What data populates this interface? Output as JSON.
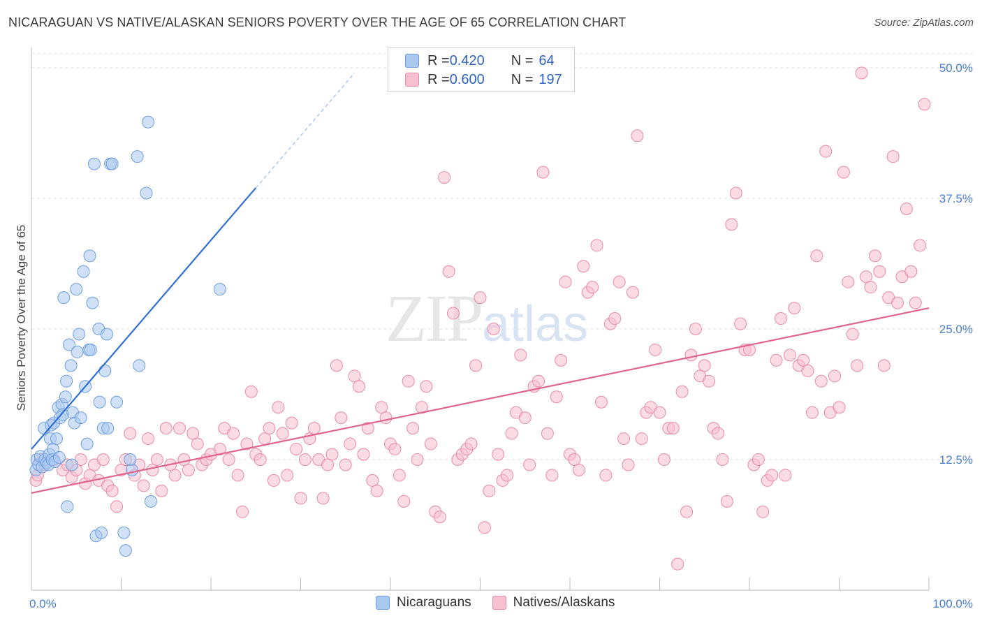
{
  "title": "NICARAGUAN VS NATIVE/ALASKAN SENIORS POVERTY OVER THE AGE OF 65 CORRELATION CHART",
  "source": "Source: ZipAtlas.com",
  "watermark": {
    "zip": "ZIP",
    "atlas": "atlas"
  },
  "legend": {
    "rows": [
      {
        "r_label": "R = ",
        "r_value": "0.420",
        "n_label": "N = ",
        "n_value": "64",
        "color": "#a9c8f0",
        "border": "#6d9fe0"
      },
      {
        "r_label": "R = ",
        "r_value": "0.600",
        "n_label": "N = ",
        "n_value": "197",
        "color": "#f7c0d0",
        "border": "#e88aa6"
      }
    ]
  },
  "bottom_legend": [
    "Nicaraguans",
    "Natives/Alaskans"
  ],
  "chart_data": {
    "type": "scatter",
    "title": "NICARAGUAN VS NATIVE/ALASKAN SENIORS POVERTY OVER THE AGE OF 65 CORRELATION CHART",
    "ylabel": "Seniors Poverty Over the Age of 65",
    "xlabel": "",
    "xlim": [
      0,
      100
    ],
    "ylim": [
      0,
      50
    ],
    "x_tick_labels": [
      "0.0%",
      "100.0%"
    ],
    "y_tick_labels": [
      "12.5%",
      "25.0%",
      "37.5%",
      "50.0%"
    ],
    "y_ticks": [
      12.5,
      25.0,
      37.5,
      50.0
    ],
    "grid": true,
    "legend_position": "top-center",
    "series": [
      {
        "name": "Nicaraguans",
        "color": "#a9c8f0",
        "stroke": "#6d9fe0",
        "line_color": "#2f6fd6",
        "trend": {
          "x0": 0,
          "y0": 13.5,
          "x1": 25,
          "y1": 38.5,
          "dash_to_x": 36,
          "dash_to_y": 49.5
        },
        "points": [
          [
            0.5,
            11.5
          ],
          [
            0.6,
            12.5
          ],
          [
            0.8,
            12.0
          ],
          [
            1.0,
            12.8
          ],
          [
            1.2,
            11.8
          ],
          [
            1.4,
            15.5
          ],
          [
            1.5,
            12.5
          ],
          [
            1.7,
            12.2
          ],
          [
            1.9,
            12.0
          ],
          [
            2.0,
            13.0
          ],
          [
            2.1,
            14.5
          ],
          [
            2.2,
            15.8
          ],
          [
            2.3,
            12.5
          ],
          [
            2.4,
            13.5
          ],
          [
            2.5,
            16.0
          ],
          [
            2.6,
            12.3
          ],
          [
            2.8,
            14.5
          ],
          [
            3.0,
            17.5
          ],
          [
            3.1,
            12.7
          ],
          [
            3.2,
            16.5
          ],
          [
            3.4,
            17.8
          ],
          [
            3.5,
            16.8
          ],
          [
            3.6,
            28.0
          ],
          [
            3.8,
            18.5
          ],
          [
            3.9,
            20.0
          ],
          [
            4.0,
            8.0
          ],
          [
            4.2,
            23.5
          ],
          [
            4.4,
            21.5
          ],
          [
            4.6,
            17.0
          ],
          [
            4.8,
            16.0
          ],
          [
            5.0,
            28.8
          ],
          [
            5.1,
            22.8
          ],
          [
            5.3,
            24.5
          ],
          [
            5.5,
            16.5
          ],
          [
            5.8,
            30.5
          ],
          [
            6.0,
            19.5
          ],
          [
            6.2,
            14.0
          ],
          [
            6.4,
            23.0
          ],
          [
            6.5,
            32.0
          ],
          [
            6.6,
            23.0
          ],
          [
            6.8,
            27.5
          ],
          [
            7.0,
            40.8
          ],
          [
            7.2,
            5.2
          ],
          [
            7.5,
            25.0
          ],
          [
            7.6,
            18.0
          ],
          [
            7.8,
            5.5
          ],
          [
            8.0,
            15.5
          ],
          [
            8.2,
            21.0
          ],
          [
            8.4,
            24.5
          ],
          [
            8.5,
            15.5
          ],
          [
            8.8,
            40.8
          ],
          [
            9.0,
            40.8
          ],
          [
            9.5,
            18.0
          ],
          [
            10.3,
            5.5
          ],
          [
            10.5,
            3.8
          ],
          [
            11.0,
            12.5
          ],
          [
            11.2,
            11.5
          ],
          [
            11.8,
            41.5
          ],
          [
            12.0,
            21.5
          ],
          [
            12.8,
            38.0
          ],
          [
            13.0,
            44.8
          ],
          [
            13.3,
            8.5
          ],
          [
            21.0,
            28.8
          ],
          [
            4.5,
            12.0
          ]
        ]
      },
      {
        "name": "Natives/Alaskans",
        "color": "#f7c0d0",
        "stroke": "#e88aa6",
        "line_color": "#e0648c",
        "trend": {
          "x0": 0,
          "y0": 9.3,
          "x1": 100,
          "y1": 27.0
        },
        "points": [
          [
            0.5,
            10.5
          ],
          [
            0.7,
            11.0
          ],
          [
            1.0,
            12.5
          ],
          [
            1.5,
            12.0
          ],
          [
            2.5,
            12.5
          ],
          [
            3.5,
            11.5
          ],
          [
            4.0,
            12.0
          ],
          [
            4.5,
            10.8
          ],
          [
            5.0,
            11.5
          ],
          [
            5.5,
            12.5
          ],
          [
            6.0,
            10.2
          ],
          [
            6.5,
            11.0
          ],
          [
            7.0,
            12.0
          ],
          [
            7.5,
            10.5
          ],
          [
            8.0,
            12.5
          ],
          [
            8.5,
            10.0
          ],
          [
            9.0,
            9.5
          ],
          [
            9.5,
            8.0
          ],
          [
            10.0,
            11.5
          ],
          [
            10.5,
            12.5
          ],
          [
            11.0,
            15.0
          ],
          [
            11.5,
            11.0
          ],
          [
            12.0,
            12.0
          ],
          [
            12.5,
            10.0
          ],
          [
            13.0,
            14.5
          ],
          [
            13.5,
            11.5
          ],
          [
            14.0,
            12.5
          ],
          [
            14.5,
            9.5
          ],
          [
            15.0,
            15.5
          ],
          [
            15.5,
            12.0
          ],
          [
            16.0,
            11.0
          ],
          [
            16.5,
            15.5
          ],
          [
            17.0,
            12.5
          ],
          [
            17.5,
            11.5
          ],
          [
            18.0,
            15.0
          ],
          [
            18.5,
            14.0
          ],
          [
            19.0,
            12.0
          ],
          [
            19.5,
            12.5
          ],
          [
            20.0,
            13.0
          ],
          [
            21.0,
            13.5
          ],
          [
            21.5,
            15.5
          ],
          [
            22.0,
            12.5
          ],
          [
            22.5,
            15.0
          ],
          [
            23.0,
            11.0
          ],
          [
            23.5,
            7.5
          ],
          [
            24.0,
            14.0
          ],
          [
            24.5,
            19.0
          ],
          [
            25.0,
            13.0
          ],
          [
            25.5,
            12.5
          ],
          [
            26.0,
            14.5
          ],
          [
            26.5,
            15.5
          ],
          [
            27.0,
            10.5
          ],
          [
            27.5,
            17.5
          ],
          [
            28.0,
            15.0
          ],
          [
            28.5,
            11.0
          ],
          [
            29.0,
            16.0
          ],
          [
            29.5,
            13.5
          ],
          [
            30.0,
            8.8
          ],
          [
            30.5,
            12.5
          ],
          [
            31.0,
            14.5
          ],
          [
            31.5,
            15.5
          ],
          [
            32.0,
            12.5
          ],
          [
            32.5,
            8.8
          ],
          [
            33.0,
            12.0
          ],
          [
            33.5,
            13.0
          ],
          [
            34.0,
            21.5
          ],
          [
            34.5,
            16.5
          ],
          [
            35.0,
            12.0
          ],
          [
            35.5,
            14.0
          ],
          [
            36.0,
            20.5
          ],
          [
            36.5,
            19.5
          ],
          [
            37.0,
            13.0
          ],
          [
            37.5,
            15.5
          ],
          [
            38.0,
            10.5
          ],
          [
            38.5,
            9.5
          ],
          [
            39.0,
            17.5
          ],
          [
            39.5,
            16.5
          ],
          [
            40.0,
            14.0
          ],
          [
            40.5,
            13.5
          ],
          [
            41.0,
            11.0
          ],
          [
            41.5,
            8.5
          ],
          [
            42.0,
            20.0
          ],
          [
            42.5,
            15.5
          ],
          [
            43.0,
            12.5
          ],
          [
            43.5,
            17.5
          ],
          [
            44.0,
            19.5
          ],
          [
            44.5,
            14.0
          ],
          [
            45.0,
            7.5
          ],
          [
            45.5,
            7.0
          ],
          [
            46.0,
            39.5
          ],
          [
            46.5,
            30.5
          ],
          [
            47.0,
            26.5
          ],
          [
            47.5,
            12.5
          ],
          [
            48.0,
            13.0
          ],
          [
            48.5,
            13.5
          ],
          [
            49.0,
            14.0
          ],
          [
            49.5,
            21.5
          ],
          [
            50.0,
            28.0
          ],
          [
            50.5,
            6.0
          ],
          [
            51.0,
            9.5
          ],
          [
            51.5,
            25.0
          ],
          [
            52.0,
            13.0
          ],
          [
            52.5,
            10.5
          ],
          [
            53.0,
            11.0
          ],
          [
            53.5,
            15.0
          ],
          [
            54.0,
            17.0
          ],
          [
            54.5,
            22.5
          ],
          [
            55.0,
            16.5
          ],
          [
            55.5,
            12.0
          ],
          [
            56.0,
            19.5
          ],
          [
            56.5,
            20.0
          ],
          [
            57.0,
            40.0
          ],
          [
            57.5,
            15.0
          ],
          [
            58.0,
            11.0
          ],
          [
            58.5,
            18.5
          ],
          [
            59.0,
            22.0
          ],
          [
            59.5,
            29.5
          ],
          [
            60.0,
            13.0
          ],
          [
            60.5,
            12.5
          ],
          [
            61.0,
            11.5
          ],
          [
            61.5,
            31.0
          ],
          [
            62.0,
            28.5
          ],
          [
            62.5,
            29.0
          ],
          [
            63.0,
            33.0
          ],
          [
            63.5,
            18.0
          ],
          [
            64.0,
            11.0
          ],
          [
            64.5,
            25.5
          ],
          [
            65.0,
            26.0
          ],
          [
            65.5,
            29.5
          ],
          [
            66.0,
            14.5
          ],
          [
            66.5,
            12.0
          ],
          [
            67.0,
            28.5
          ],
          [
            67.5,
            43.5
          ],
          [
            68.0,
            14.5
          ],
          [
            68.5,
            17.0
          ],
          [
            69.0,
            17.5
          ],
          [
            69.5,
            23.0
          ],
          [
            70.0,
            17.0
          ],
          [
            70.5,
            12.5
          ],
          [
            71.0,
            15.5
          ],
          [
            71.5,
            15.5
          ],
          [
            72.0,
            2.5
          ],
          [
            72.5,
            19.0
          ],
          [
            73.0,
            7.5
          ],
          [
            73.5,
            22.5
          ],
          [
            74.0,
            25.0
          ],
          [
            74.5,
            20.5
          ],
          [
            75.0,
            21.5
          ],
          [
            75.5,
            20.0
          ],
          [
            76.0,
            15.5
          ],
          [
            76.5,
            15.0
          ],
          [
            77.0,
            12.5
          ],
          [
            77.5,
            8.5
          ],
          [
            78.0,
            35.0
          ],
          [
            78.5,
            38.0
          ],
          [
            79.0,
            25.5
          ],
          [
            79.5,
            23.0
          ],
          [
            80.0,
            23.0
          ],
          [
            80.5,
            12.0
          ],
          [
            81.0,
            12.5
          ],
          [
            81.5,
            7.5
          ],
          [
            82.0,
            10.5
          ],
          [
            82.5,
            11.0
          ],
          [
            83.0,
            22.0
          ],
          [
            83.5,
            26.0
          ],
          [
            84.0,
            11.0
          ],
          [
            84.5,
            22.5
          ],
          [
            85.0,
            27.0
          ],
          [
            85.5,
            21.5
          ],
          [
            86.0,
            22.0
          ],
          [
            86.5,
            21.0
          ],
          [
            87.0,
            17.0
          ],
          [
            87.5,
            32.0
          ],
          [
            88.0,
            20.0
          ],
          [
            88.5,
            42.0
          ],
          [
            89.0,
            17.0
          ],
          [
            89.5,
            20.5
          ],
          [
            90.0,
            17.5
          ],
          [
            90.5,
            40.0
          ],
          [
            91.0,
            29.5
          ],
          [
            91.5,
            24.5
          ],
          [
            92.0,
            21.5
          ],
          [
            92.5,
            49.5
          ],
          [
            93.0,
            30.0
          ],
          [
            93.5,
            29.0
          ],
          [
            94.0,
            32.0
          ],
          [
            94.5,
            30.5
          ],
          [
            95.0,
            21.5
          ],
          [
            95.5,
            28.0
          ],
          [
            96.0,
            41.5
          ],
          [
            96.5,
            27.5
          ],
          [
            97.0,
            30.0
          ],
          [
            97.5,
            36.5
          ],
          [
            98.0,
            30.5
          ],
          [
            98.5,
            27.5
          ],
          [
            99.0,
            33.0
          ],
          [
            99.5,
            46.5
          ]
        ]
      }
    ]
  }
}
